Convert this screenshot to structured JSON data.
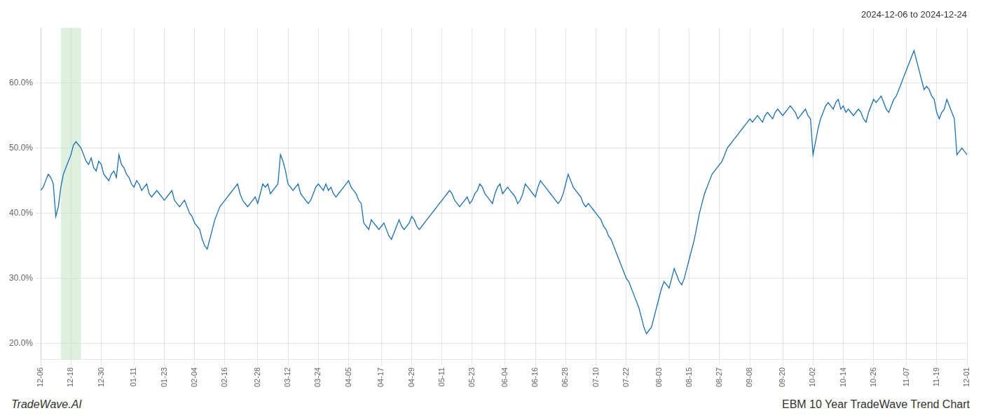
{
  "chart_data": {
    "type": "line",
    "title": "2024-12-06 to 2024-12-24",
    "annotations": [
      "TradeWave.AI",
      "EBM 10 Year TradeWave Trend Chart"
    ],
    "color": "#1a6faf",
    "grid": true,
    "highlight": {
      "start": 8,
      "end": 16,
      "color": "#c8e6c9"
    },
    "ylim": [
      0.175,
      0.685
    ],
    "yticks": [
      {
        "value": 0.2,
        "label": "20.0%"
      },
      {
        "value": 0.3,
        "label": "30.0%"
      },
      {
        "value": 0.4,
        "label": "40.0%"
      },
      {
        "value": 0.5,
        "label": "50.0%"
      },
      {
        "value": 0.6,
        "label": "60.0%"
      }
    ],
    "categories": [
      "12-06",
      null,
      null,
      null,
      null,
      null,
      null,
      null,
      null,
      null,
      null,
      null,
      "12-18",
      null,
      null,
      null,
      null,
      null,
      null,
      null,
      null,
      null,
      null,
      null,
      "12-30",
      null,
      null,
      null,
      null,
      null,
      null,
      null,
      null,
      null,
      null,
      null,
      null,
      "01-11",
      null,
      null,
      null,
      null,
      null,
      null,
      null,
      null,
      null,
      null,
      null,
      "01-23",
      null,
      null,
      null,
      null,
      null,
      null,
      null,
      null,
      null,
      null,
      null,
      "02-04",
      null,
      null,
      null,
      null,
      null,
      null,
      null,
      null,
      null,
      null,
      null,
      "02-16",
      null,
      null,
      null,
      null,
      null,
      null,
      null,
      null,
      null,
      null,
      null,
      null,
      "02-28",
      null,
      null,
      null,
      null,
      null,
      null,
      null,
      null,
      null,
      null,
      null,
      "03-12",
      null,
      null,
      null,
      null,
      null,
      null,
      null,
      null,
      null,
      null,
      null,
      "03-24",
      null,
      null,
      null,
      null,
      null,
      null,
      null,
      null,
      null,
      null,
      null,
      "04-05",
      null,
      null,
      null,
      null,
      null,
      null,
      null,
      null,
      null,
      null,
      null,
      null,
      "04-17",
      null,
      null,
      null,
      null,
      null,
      null,
      null,
      null,
      null,
      null,
      null,
      "04-29",
      null,
      null,
      null,
      null,
      null,
      null,
      null,
      null,
      null,
      null,
      null,
      "05-11",
      null,
      null,
      null,
      null,
      null,
      null,
      null,
      null,
      null,
      null,
      null,
      "05-23",
      null,
      null,
      null,
      null,
      null,
      null,
      null,
      null,
      null,
      null,
      null,
      null,
      "06-04",
      null,
      null,
      null,
      null,
      null,
      null,
      null,
      null,
      null,
      null,
      null,
      "06-16",
      null,
      null,
      null,
      null,
      null,
      null,
      null,
      null,
      null,
      null,
      null,
      "06-28",
      null,
      null,
      null,
      null,
      null,
      null,
      null,
      null,
      null,
      null,
      null,
      "07-10",
      null,
      null,
      null,
      null,
      null,
      null,
      null,
      null,
      null,
      null,
      null,
      "07-22",
      null,
      null,
      null,
      null,
      null,
      null,
      null,
      null,
      null,
      null,
      null,
      null,
      "08-03",
      null,
      null,
      null,
      null,
      null,
      null,
      null,
      null,
      null,
      null,
      null,
      "08-15",
      null,
      null,
      null,
      null,
      null,
      null,
      null,
      null,
      null,
      null,
      null,
      "08-27",
      null,
      null,
      null,
      null,
      null,
      null,
      null,
      null,
      null,
      null,
      null,
      "09-08",
      null,
      null,
      null,
      null,
      null,
      null,
      null,
      null,
      null,
      null,
      null,
      null,
      "09-20",
      null,
      null,
      null,
      null,
      null,
      null,
      null,
      null,
      null,
      null,
      null,
      "10-02",
      null,
      null,
      null,
      null,
      null,
      null,
      null,
      null,
      null,
      null,
      null,
      "10-14",
      null,
      null,
      null,
      null,
      null,
      null,
      null,
      null,
      null,
      null,
      null,
      "10-26",
      null,
      null,
      null,
      null,
      null,
      null,
      null,
      null,
      null,
      null,
      null,
      null,
      "11-07",
      null,
      null,
      null,
      null,
      null,
      null,
      null,
      null,
      null,
      null,
      null,
      "11-19",
      null,
      null,
      null,
      null,
      null,
      null,
      null,
      null,
      null,
      null,
      null,
      "12-01"
    ],
    "values": [
      0.435,
      0.44,
      0.45,
      0.46,
      0.455,
      0.445,
      0.395,
      0.41,
      0.44,
      0.46,
      0.47,
      0.48,
      0.49,
      0.505,
      0.51,
      0.505,
      0.5,
      0.49,
      0.48,
      0.475,
      0.485,
      0.47,
      0.465,
      0.48,
      0.475,
      0.46,
      0.455,
      0.45,
      0.46,
      0.465,
      0.455,
      0.49,
      0.475,
      0.47,
      0.46,
      0.455,
      0.445,
      0.44,
      0.45,
      0.445,
      0.435,
      0.44,
      0.445,
      0.43,
      0.425,
      0.43,
      0.435,
      0.43,
      0.425,
      0.42,
      0.425,
      0.43,
      0.435,
      0.42,
      0.415,
      0.41,
      0.415,
      0.42,
      0.41,
      0.4,
      0.395,
      0.385,
      0.38,
      0.375,
      0.36,
      0.35,
      0.345,
      0.36,
      0.375,
      0.39,
      0.4,
      0.41,
      0.415,
      0.42,
      0.425,
      0.43,
      0.435,
      0.44,
      0.445,
      0.43,
      0.42,
      0.415,
      0.41,
      0.415,
      0.42,
      0.425,
      0.415,
      0.43,
      0.445,
      0.44,
      0.445,
      0.43,
      0.435,
      0.44,
      0.445,
      0.49,
      0.48,
      0.465,
      0.445,
      0.44,
      0.435,
      0.44,
      0.445,
      0.43,
      0.425,
      0.42,
      0.415,
      0.42,
      0.43,
      0.44,
      0.445,
      0.44,
      0.435,
      0.445,
      0.435,
      0.44,
      0.43,
      0.425,
      0.43,
      0.435,
      0.44,
      0.445,
      0.45,
      0.44,
      0.435,
      0.43,
      0.42,
      0.415,
      0.385,
      0.38,
      0.375,
      0.39,
      0.385,
      0.38,
      0.375,
      0.38,
      0.385,
      0.375,
      0.365,
      0.36,
      0.37,
      0.38,
      0.39,
      0.38,
      0.375,
      0.38,
      0.385,
      0.395,
      0.39,
      0.38,
      0.375,
      0.38,
      0.385,
      0.39,
      0.395,
      0.4,
      0.405,
      0.41,
      0.415,
      0.42,
      0.425,
      0.43,
      0.435,
      0.43,
      0.42,
      0.415,
      0.41,
      0.415,
      0.42,
      0.425,
      0.415,
      0.42,
      0.43,
      0.435,
      0.445,
      0.44,
      0.43,
      0.425,
      0.42,
      0.415,
      0.43,
      0.44,
      0.445,
      0.43,
      0.435,
      0.44,
      0.435,
      0.43,
      0.425,
      0.415,
      0.42,
      0.43,
      0.445,
      0.44,
      0.435,
      0.43,
      0.425,
      0.44,
      0.45,
      0.445,
      0.44,
      0.435,
      0.43,
      0.425,
      0.42,
      0.415,
      0.42,
      0.43,
      0.445,
      0.46,
      0.45,
      0.44,
      0.435,
      0.43,
      0.425,
      0.415,
      0.41,
      0.415,
      0.41,
      0.405,
      0.4,
      0.395,
      0.39,
      0.38,
      0.375,
      0.365,
      0.36,
      0.35,
      0.34,
      0.33,
      0.32,
      0.31,
      0.3,
      0.295,
      0.285,
      0.275,
      0.265,
      0.255,
      0.24,
      0.225,
      0.215,
      0.22,
      0.225,
      0.24,
      0.255,
      0.27,
      0.285,
      0.295,
      0.29,
      0.285,
      0.3,
      0.315,
      0.305,
      0.295,
      0.29,
      0.3,
      0.315,
      0.33,
      0.345,
      0.36,
      0.38,
      0.4,
      0.415,
      0.43,
      0.44,
      0.45,
      0.46,
      0.465,
      0.47,
      0.475,
      0.48,
      0.49,
      0.5,
      0.505,
      0.51,
      0.515,
      0.52,
      0.525,
      0.53,
      0.535,
      0.54,
      0.545,
      0.54,
      0.545,
      0.55,
      0.545,
      0.54,
      0.55,
      0.555,
      0.55,
      0.545,
      0.555,
      0.56,
      0.555,
      0.55,
      0.555,
      0.56,
      0.565,
      0.56,
      0.555,
      0.545,
      0.55,
      0.555,
      0.56,
      0.55,
      0.545,
      0.49,
      0.51,
      0.53,
      0.545,
      0.555,
      0.565,
      0.57,
      0.565,
      0.56,
      0.57,
      0.575,
      0.56,
      0.565,
      0.555,
      0.56,
      0.555,
      0.55,
      0.555,
      0.56,
      0.555,
      0.545,
      0.54,
      0.555,
      0.565,
      0.575,
      0.57,
      0.575,
      0.58,
      0.57,
      0.56,
      0.555,
      0.565,
      0.575,
      0.58,
      0.59,
      0.6,
      0.61,
      0.62,
      0.63,
      0.64,
      0.65,
      0.635,
      0.62,
      0.605,
      0.59,
      0.595,
      0.59,
      0.58,
      0.575,
      0.555,
      0.545,
      0.555,
      0.56,
      0.575,
      0.565,
      0.555,
      0.545,
      0.49,
      0.495,
      0.5,
      0.495,
      0.49
    ]
  }
}
